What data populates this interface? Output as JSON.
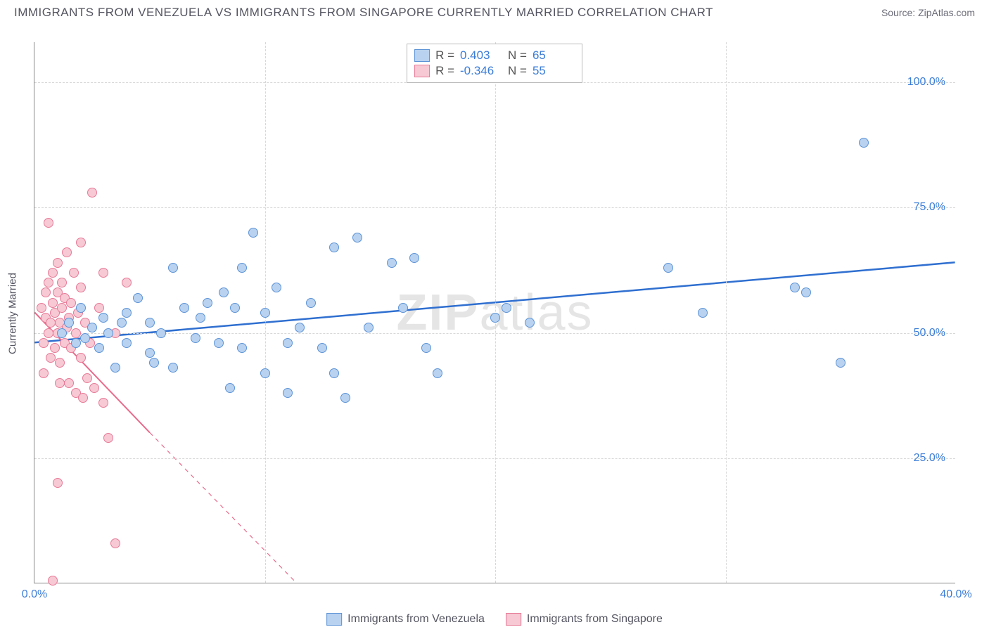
{
  "title": "IMMIGRANTS FROM VENEZUELA VS IMMIGRANTS FROM SINGAPORE CURRENTLY MARRIED CORRELATION CHART",
  "source": "Source: ZipAtlas.com",
  "watermark": "ZIPatlas",
  "chart": {
    "type": "scatter",
    "background_color": "#ffffff",
    "grid_color": "#d8d8d8",
    "axis_color": "#888888",
    "tick_label_color": "#3b7dd8",
    "tick_label_fontsize": 16,
    "y_axis_title": "Currently Married",
    "x_range": [
      0,
      40
    ],
    "y_range": [
      0,
      108
    ],
    "x_ticks": [
      0,
      10,
      20,
      30,
      40
    ],
    "x_tick_labels": [
      "0.0%",
      "",
      "",
      "",
      "40.0%"
    ],
    "y_ticks": [
      25,
      50,
      75,
      100
    ],
    "y_tick_labels": [
      "25.0%",
      "50.0%",
      "75.0%",
      "100.0%"
    ],
    "point_radius": 7,
    "point_stroke_width": 1.2,
    "series": [
      {
        "name": "Immigrants from Venezuela",
        "color_fill": "#b9d2f0",
        "color_stroke": "#5c93d6",
        "R": "0.403",
        "N": "65",
        "trend": {
          "x1": 0,
          "y1": 48,
          "x2": 40,
          "y2": 64,
          "color": "#2f6fd0",
          "width": 2.5,
          "dash_after_x": 40
        },
        "points": [
          [
            1.2,
            50
          ],
          [
            1.5,
            52
          ],
          [
            1.8,
            48
          ],
          [
            2.0,
            55
          ],
          [
            2.2,
            49
          ],
          [
            2.5,
            51
          ],
          [
            2.8,
            47
          ],
          [
            3.0,
            53
          ],
          [
            3.2,
            50
          ],
          [
            3.5,
            43
          ],
          [
            3.8,
            52
          ],
          [
            4.0,
            54
          ],
          [
            4.0,
            48
          ],
          [
            4.5,
            57
          ],
          [
            5.0,
            46
          ],
          [
            5.0,
            52
          ],
          [
            5.2,
            44
          ],
          [
            5.5,
            50
          ],
          [
            6.0,
            63
          ],
          [
            6.0,
            43
          ],
          [
            6.5,
            55
          ],
          [
            7.0,
            49
          ],
          [
            7.2,
            53
          ],
          [
            7.5,
            56
          ],
          [
            8.0,
            48
          ],
          [
            8.2,
            58
          ],
          [
            8.5,
            39
          ],
          [
            8.7,
            55
          ],
          [
            9.0,
            63
          ],
          [
            9.0,
            47
          ],
          [
            9.5,
            70
          ],
          [
            10.0,
            54
          ],
          [
            10.0,
            42
          ],
          [
            10.5,
            59
          ],
          [
            11.0,
            48
          ],
          [
            11.0,
            38
          ],
          [
            11.5,
            51
          ],
          [
            12.0,
            56
          ],
          [
            12.5,
            47
          ],
          [
            13.0,
            67
          ],
          [
            13.0,
            42
          ],
          [
            13.5,
            37
          ],
          [
            14.0,
            69
          ],
          [
            14.5,
            51
          ],
          [
            15.5,
            64
          ],
          [
            16.0,
            55
          ],
          [
            16.5,
            65
          ],
          [
            17.0,
            47
          ],
          [
            17.5,
            42
          ],
          [
            20.0,
            53
          ],
          [
            20.5,
            55
          ],
          [
            21.5,
            52
          ],
          [
            27.5,
            63
          ],
          [
            29.0,
            54
          ],
          [
            33.0,
            59
          ],
          [
            33.5,
            58
          ],
          [
            35.0,
            44
          ],
          [
            36.0,
            88
          ]
        ]
      },
      {
        "name": "Immigrants from Singapore",
        "color_fill": "#f7c9d4",
        "color_stroke": "#e77a97",
        "R": "-0.346",
        "N": "55",
        "trend": {
          "x1": 0,
          "y1": 54,
          "x2": 5,
          "y2": 30,
          "x3": 12,
          "y3": -3,
          "color": "#e86b8c",
          "width": 2,
          "dash_after_x": 5
        },
        "points": [
          [
            0.3,
            55
          ],
          [
            0.4,
            48
          ],
          [
            0.5,
            53
          ],
          [
            0.5,
            58
          ],
          [
            0.6,
            50
          ],
          [
            0.6,
            60
          ],
          [
            0.7,
            45
          ],
          [
            0.7,
            52
          ],
          [
            0.8,
            56
          ],
          [
            0.8,
            62
          ],
          [
            0.9,
            47
          ],
          [
            0.9,
            54
          ],
          [
            1.0,
            50
          ],
          [
            1.0,
            58
          ],
          [
            1.0,
            64
          ],
          [
            1.1,
            44
          ],
          [
            1.1,
            52
          ],
          [
            1.2,
            55
          ],
          [
            1.2,
            60
          ],
          [
            1.3,
            48
          ],
          [
            1.3,
            57
          ],
          [
            1.4,
            51
          ],
          [
            1.4,
            66
          ],
          [
            1.5,
            40
          ],
          [
            1.5,
            53
          ],
          [
            1.6,
            47
          ],
          [
            1.6,
            56
          ],
          [
            1.7,
            62
          ],
          [
            1.8,
            38
          ],
          [
            1.8,
            50
          ],
          [
            1.9,
            54
          ],
          [
            2.0,
            45
          ],
          [
            2.0,
            59
          ],
          [
            2.1,
            37
          ],
          [
            2.2,
            52
          ],
          [
            2.3,
            41
          ],
          [
            2.4,
            48
          ],
          [
            2.5,
            78
          ],
          [
            2.6,
            39
          ],
          [
            2.8,
            55
          ],
          [
            3.0,
            36
          ],
          [
            3.0,
            62
          ],
          [
            3.2,
            29
          ],
          [
            3.5,
            50
          ],
          [
            4.0,
            60
          ],
          [
            0.6,
            72
          ],
          [
            1.0,
            20
          ],
          [
            2.0,
            68
          ],
          [
            0.4,
            42
          ],
          [
            1.1,
            40
          ],
          [
            3.5,
            8
          ],
          [
            0.8,
            0.5
          ]
        ]
      }
    ]
  },
  "legend_labels": {
    "R": "R =",
    "N": "N ="
  }
}
